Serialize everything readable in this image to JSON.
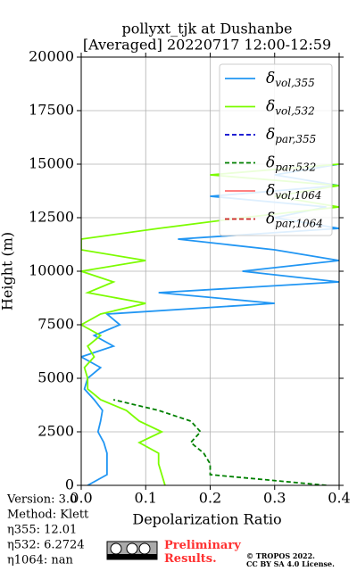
{
  "chart_data": {
    "type": "line",
    "title": "pollyxt_tjk at Dushanbe",
    "subtitle": "[Averaged] 20220717 12:00-12:59",
    "xlabel": "Depolarization Ratio",
    "ylabel": "Height (m)",
    "xlim": [
      0,
      0.4
    ],
    "xticks": [
      {
        "value": 0,
        "label": "0.0"
      },
      0.1,
      0.2,
      0.3,
      0.4
    ],
    "ylim": [
      0,
      20000
    ],
    "yticks": [
      0,
      2500,
      5000,
      7500,
      10000,
      12500,
      15000,
      17500,
      20000
    ],
    "grid": true,
    "legend": "upper right",
    "y": [
      0,
      500,
      1000,
      1500,
      2000,
      2500,
      3000,
      3500,
      4000,
      4500,
      5000,
      5500,
      6000,
      6500,
      7000,
      7500,
      8000,
      8500,
      9000,
      9500,
      10000,
      10500,
      11000,
      11500,
      12000,
      12500,
      13000,
      13500,
      14000,
      14500,
      15000
    ],
    "series": [
      {
        "name": "δvol,355",
        "color": "#2196f3",
        "dash": false,
        "values": [
          0.01,
          0.04,
          0.04,
          0.04,
          0.035,
          0.026,
          0.03,
          0.033,
          0.02,
          0.005,
          0.01,
          0.03,
          0.0,
          0.05,
          0.02,
          0.06,
          0.04,
          0.3,
          0.12,
          0.4,
          0.25,
          0.4,
          0.3,
          0.15,
          0.4,
          0.3,
          0.38,
          0.2,
          0.4,
          0.3,
          0.4
        ]
      },
      {
        "name": "δvol,532",
        "color": "#7cfc00",
        "dash": false,
        "values": [
          0.13,
          0.125,
          0.12,
          0.12,
          0.09,
          0.125,
          0.09,
          0.07,
          0.03,
          0.01,
          0.01,
          0.005,
          0.02,
          0.01,
          0.03,
          0.0,
          0.03,
          0.1,
          0.01,
          0.05,
          0.0,
          0.1,
          0.0,
          0.0,
          0.12,
          0.25,
          0.4,
          0.3,
          0.4,
          0.2,
          0.4
        ]
      },
      {
        "name": "δpar,355",
        "color": "#0000cd",
        "dash": true,
        "values": [
          null,
          null,
          null,
          null,
          null,
          null,
          null,
          null,
          null,
          null,
          null,
          null,
          null,
          null,
          null,
          null,
          null,
          null,
          null,
          null,
          null,
          null,
          null,
          null,
          null,
          null,
          null,
          null,
          null,
          null,
          null
        ]
      },
      {
        "name": "δpar,532",
        "color": "#008000",
        "dash": true,
        "values": [
          0.38,
          0.2,
          0.2,
          0.19,
          0.17,
          0.185,
          0.17,
          0.12,
          0.05,
          null,
          null,
          null,
          null,
          null,
          null,
          null,
          null,
          null,
          null,
          null,
          null,
          null,
          null,
          null,
          null,
          null,
          null,
          null,
          null,
          null,
          null
        ]
      },
      {
        "name": "δvol,1064",
        "color": "#ff6f6f",
        "dash": false,
        "values": [
          null,
          null,
          null,
          null,
          null,
          null,
          null,
          null,
          null,
          null,
          null,
          null,
          null,
          null,
          null,
          null,
          null,
          null,
          null,
          null,
          null,
          null,
          null,
          null,
          null,
          null,
          null,
          null,
          null,
          null,
          null
        ]
      },
      {
        "name": "δpar,1064",
        "color": "#cc2222",
        "dash": true,
        "values": [
          null,
          null,
          null,
          null,
          null,
          null,
          null,
          null,
          null,
          null,
          null,
          null,
          null,
          null,
          null,
          null,
          null,
          null,
          null,
          null,
          null,
          null,
          null,
          null,
          null,
          null,
          null,
          null,
          null,
          null,
          null
        ]
      }
    ],
    "notes": [
      "Version: 3.0",
      "Method: Klett",
      "η355:  12.01",
      "η532: 6.2724",
      "η1064:    nan"
    ],
    "stamp": "Preliminary Results.",
    "copyright": [
      "© TROPOS 2022.",
      "CC BY SA 4.0 License."
    ]
  }
}
